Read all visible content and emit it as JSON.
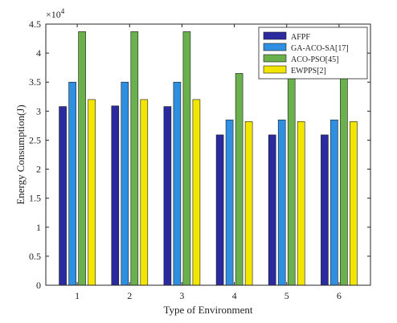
{
  "chart_data": {
    "type": "bar",
    "categories": [
      "1",
      "2",
      "3",
      "4",
      "5",
      "6"
    ],
    "series": [
      {
        "name": "AFPF",
        "values": [
          30.8,
          30.9,
          30.8,
          25.9,
          25.9,
          25.9
        ],
        "color": "#2b2a9e"
      },
      {
        "name": "GA-ACO-SA[17]",
        "values": [
          35.0,
          35.0,
          35.0,
          28.5,
          28.5,
          28.5
        ],
        "color": "#2f8fe0"
      },
      {
        "name": "ACO-PSO[45]",
        "values": [
          43.7,
          43.7,
          43.7,
          36.5,
          36.5,
          36.5
        ],
        "color": "#6ab04c"
      },
      {
        "name": "EWPPS[2]",
        "values": [
          32.0,
          32.0,
          32.0,
          28.2,
          28.2,
          28.2
        ],
        "color": "#f2e500"
      }
    ],
    "xlabel": "Type of Environment",
    "ylabel": "Energy Consumption(J)",
    "ylim": [
      0,
      45
    ],
    "yticks": [
      "0",
      "0.5",
      "1",
      "1.5",
      "2",
      "2.5",
      "3",
      "3.5",
      "4",
      "4.5"
    ],
    "exponent_label": {
      "base": "×10",
      "power": "4"
    },
    "legend_position": "top-right",
    "grid": false
  }
}
